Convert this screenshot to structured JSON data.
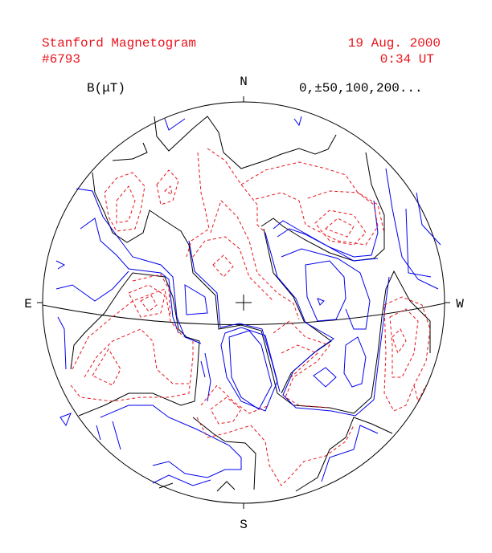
{
  "header": {
    "title": "Stanford Magnetogram",
    "number": "#6793",
    "date": "19 Aug. 2000",
    "time": "0:34 UT"
  },
  "legend": {
    "unit": "B(μT)",
    "levels": "0,±50,100,200..."
  },
  "compass": {
    "north": "N",
    "south": "S",
    "east": "E",
    "west": "W"
  }
}
